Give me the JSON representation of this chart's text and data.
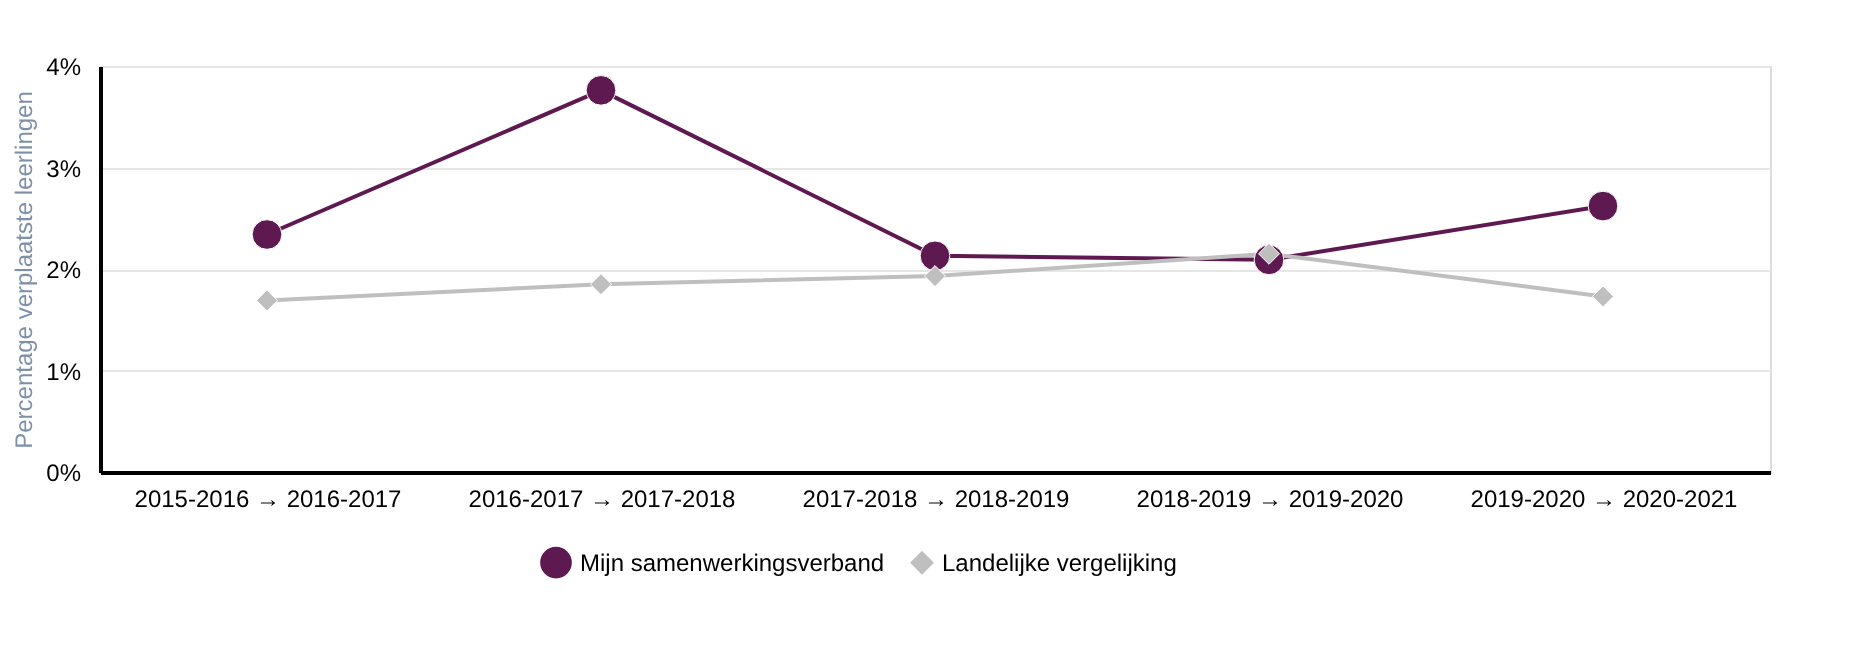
{
  "chart_data": {
    "type": "line",
    "ylabel": "Percentage verplaatste leerlingen",
    "categories": [
      "2015-2016 → 2016-2017",
      "2016-2017 → 2017-2018",
      "2017-2018 → 2018-2019",
      "2018-2019 → 2019-2020",
      "2019-2020 → 2020-2021"
    ],
    "series": [
      {
        "name": "Mijn samenwerkingsverband",
        "color": "#5e1a50",
        "marker": "circle",
        "values": [
          2.34,
          3.76,
          2.13,
          2.09,
          2.62
        ]
      },
      {
        "name": "Landelijke vergelijking",
        "color": "#bfbfbf",
        "marker": "diamond",
        "values": [
          1.69,
          1.85,
          1.93,
          2.15,
          1.73
        ]
      }
    ],
    "ylim": [
      0,
      4
    ],
    "yticks": [
      {
        "value": 0,
        "label": "0%"
      },
      {
        "value": 1,
        "label": "1%"
      },
      {
        "value": 2,
        "label": "2%"
      },
      {
        "value": 3,
        "label": "3%"
      },
      {
        "value": 4,
        "label": "4%"
      }
    ],
    "grid": "y",
    "legend": "bottom",
    "line_style": "solid"
  }
}
